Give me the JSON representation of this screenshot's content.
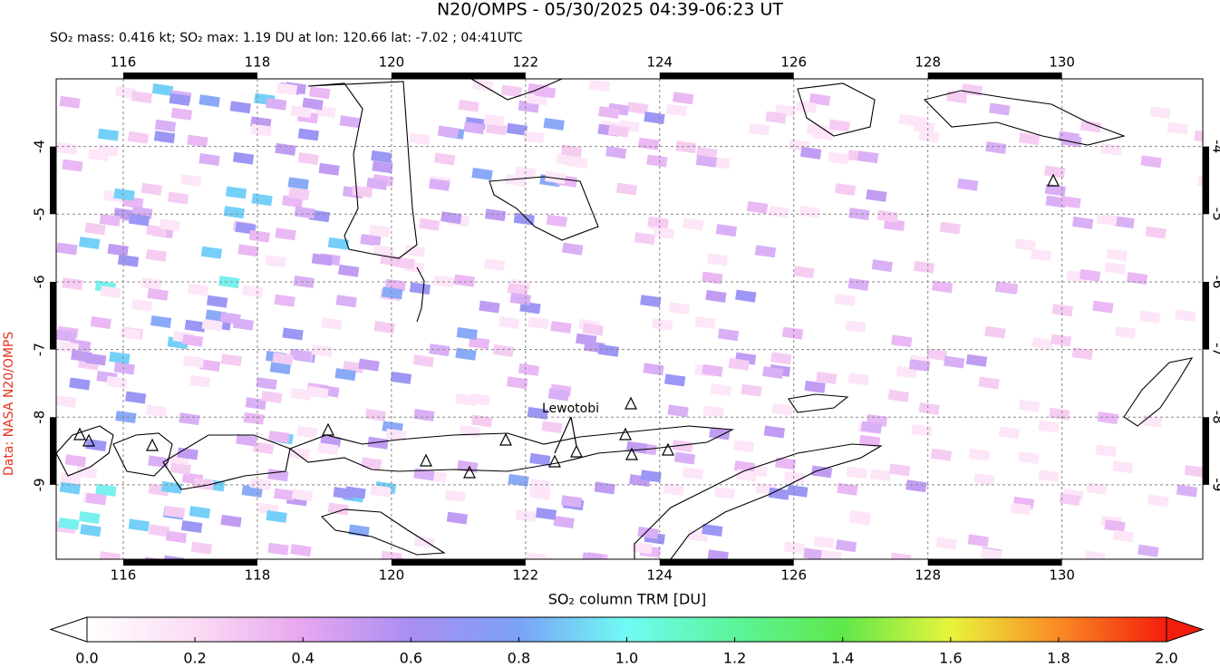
{
  "title": "N20/OMPS - 05/30/2025 04:39-06:23 UT",
  "subtitle": "SO₂ mass: 0.416 kt; SO₂ max: 1.19 DU at lon: 120.66 lat: -7.02 ; 04:41UTC",
  "credit": "Data: NASA N20/OMPS",
  "annotation": "Lewotobi",
  "map": {
    "xlim": [
      115,
      132.1
    ],
    "ylim": [
      -10.1,
      -3.0
    ],
    "xticks": [
      116,
      118,
      120,
      122,
      124,
      126,
      128,
      130
    ],
    "yticks": [
      -4,
      -5,
      -6,
      -7,
      -8,
      -9
    ],
    "grid": true
  },
  "colorbar": {
    "label": "SO₂ column TRM [DU]",
    "lim": [
      0,
      2
    ],
    "ticks": [
      {
        "value": 0,
        "label": "0.0"
      },
      {
        "value": 0.2,
        "label": "0.2"
      },
      {
        "value": 0.4,
        "label": "0.4"
      },
      {
        "value": 0.6,
        "label": "0.6"
      },
      {
        "value": 0.8,
        "label": "0.8"
      },
      {
        "value": 1,
        "label": "1.0"
      },
      {
        "value": 1.2,
        "label": "1.2"
      },
      {
        "value": 1.4,
        "label": "1.4"
      },
      {
        "value": 1.6,
        "label": "1.6"
      },
      {
        "value": 1.8,
        "label": "1.8"
      },
      {
        "value": 2,
        "label": "2.0"
      }
    ]
  }
}
